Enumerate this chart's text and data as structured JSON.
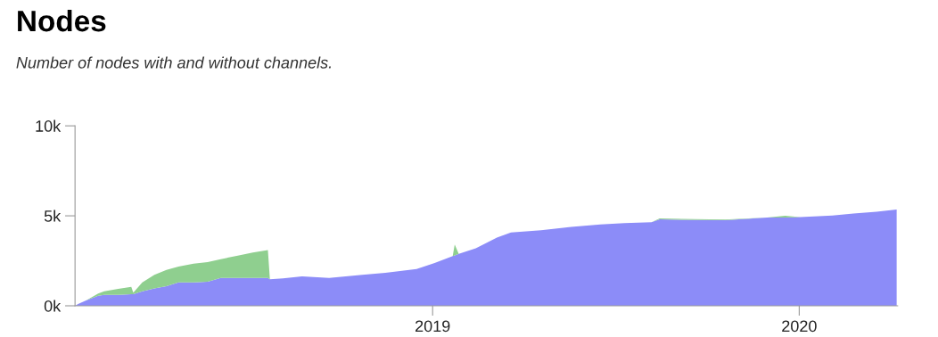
{
  "chart_data": {
    "type": "area",
    "stacked": true,
    "title": "Nodes",
    "subtitle": "Number of nodes with and without channels.",
    "x": [
      "2018-01-10",
      "2018-01-13",
      "2018-01-21",
      "2018-02-02",
      "2018-02-08",
      "2018-02-22",
      "2018-03-07",
      "2018-03-09",
      "2018-03-18",
      "2018-03-30",
      "2018-04-11",
      "2018-04-23",
      "2018-05-08",
      "2018-05-22",
      "2018-06-04",
      "2018-06-21",
      "2018-07-06",
      "2018-07-21",
      "2018-07-23",
      "2018-08-05",
      "2018-08-24",
      "2018-09-20",
      "2018-10-23",
      "2018-11-15",
      "2018-12-16",
      "2019-01-03",
      "2019-01-21",
      "2019-01-23",
      "2019-01-27",
      "2019-02-13",
      "2019-03-06",
      "2019-03-20",
      "2019-04-19",
      "2019-05-19",
      "2019-06-17",
      "2019-07-11",
      "2019-08-07",
      "2019-08-15",
      "2019-10-19",
      "2019-11-30",
      "2019-12-18",
      "2020-01-02",
      "2020-02-03",
      "2020-02-24",
      "2020-03-18",
      "2020-04-07"
    ],
    "series": [
      {
        "color": "#8c8cf8",
        "values": [
          0,
          100,
          300,
          560,
          610,
          610,
          640,
          640,
          810,
          970,
          1090,
          1300,
          1300,
          1340,
          1550,
          1550,
          1550,
          1550,
          1470,
          1520,
          1630,
          1550,
          1720,
          1830,
          2040,
          2380,
          2760,
          2800,
          2880,
          3200,
          3790,
          4070,
          4200,
          4390,
          4520,
          4600,
          4640,
          4800,
          4750,
          4900,
          4900,
          4930,
          5010,
          5130,
          5230,
          5350
        ]
      },
      {
        "color": "#8fcf8f",
        "values": [
          0,
          0,
          0,
          120,
          200,
          330,
          410,
          90,
          490,
          750,
          910,
          880,
          1040,
          1090,
          1040,
          1240,
          1410,
          1540,
          0,
          null,
          null,
          null,
          null,
          null,
          null,
          null,
          0,
          600,
          0,
          null,
          null,
          null,
          null,
          null,
          null,
          null,
          0,
          50,
          40,
          0,
          100,
          0,
          null,
          null,
          null,
          null
        ]
      }
    ],
    "xlim": [
      "2018-01-10",
      "2020-04-08"
    ],
    "xticks": [
      "2019",
      "2020"
    ],
    "ylim": [
      0,
      10000
    ],
    "yticks": [
      {
        "value": 0,
        "label": "0k"
      },
      {
        "value": 5000,
        "label": "5k"
      },
      {
        "value": 10000,
        "label": "10k"
      }
    ],
    "grid": false
  }
}
